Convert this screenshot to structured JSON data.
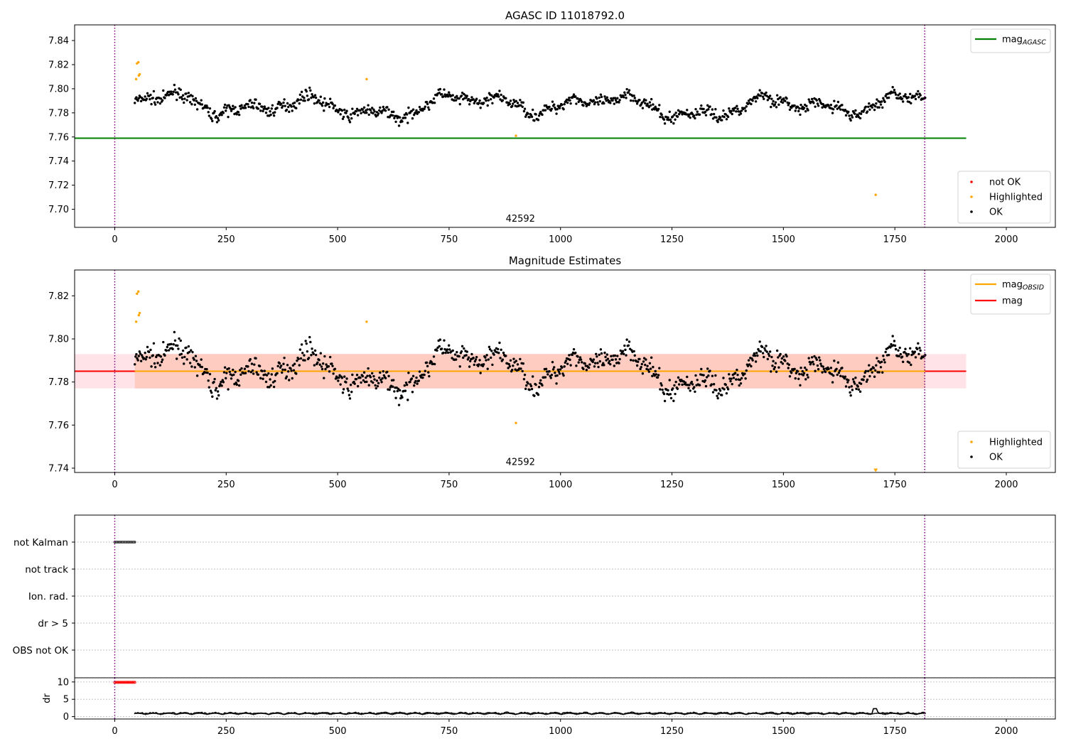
{
  "chart_data": [
    {
      "type": "scatter",
      "title": "AGASC ID 11018792.0",
      "ylim": [
        7.685,
        7.853
      ],
      "xlim": [
        -90,
        2110
      ],
      "x_ticks": [
        0,
        250,
        500,
        750,
        1000,
        1250,
        1500,
        1750,
        2000
      ],
      "y_ticks": [
        7.7,
        7.72,
        7.74,
        7.76,
        7.78,
        7.8,
        7.82,
        7.84
      ],
      "y_tick_decimals": 2,
      "vlines": [
        0,
        1817
      ],
      "hlines": [
        {
          "name": "mag_AGASC",
          "y": 7.759,
          "x": [
            -90,
            1910
          ],
          "color": "#008000"
        }
      ],
      "obsid_label": {
        "text": "42592",
        "x": 910,
        "y": 7.688
      },
      "legend_top": [
        {
          "label": "mag",
          "sub": "AGASC",
          "color": "#008000"
        }
      ],
      "legend_bottom": [
        {
          "label": "not OK",
          "color": "#ff0000"
        },
        {
          "label": "Highlighted",
          "color": "#ffa500"
        },
        {
          "label": "OK",
          "color": "#000000"
        }
      ],
      "series": [
        {
          "name": "OK",
          "color": "#000000",
          "x_range": [
            45,
            1818
          ],
          "n": 1000,
          "base": 7.786,
          "noise": 0.0042
        },
        {
          "name": "Highlighted",
          "color": "#ffa500",
          "points": [
            [
              50,
              7.821
            ],
            [
              53,
              7.822
            ],
            [
              48,
              7.808
            ],
            [
              54,
              7.811
            ],
            [
              56,
              7.812
            ],
            [
              565,
              7.808
            ],
            [
              900,
              7.761
            ],
            [
              1707,
              7.712
            ]
          ]
        },
        {
          "name": "not OK",
          "color": "#ff0000",
          "points": []
        }
      ]
    },
    {
      "type": "scatter",
      "title": "Magnitude Estimates",
      "ylim": [
        7.738,
        7.832
      ],
      "xlim": [
        -90,
        2110
      ],
      "x_ticks": [
        0,
        250,
        500,
        750,
        1000,
        1250,
        1500,
        1750,
        2000
      ],
      "y_ticks": [
        7.74,
        7.76,
        7.78,
        7.8,
        7.82
      ],
      "y_tick_decimals": 2,
      "vlines": [
        0,
        1817
      ],
      "hlines": [
        {
          "name": "mag",
          "y": 7.785,
          "x": [
            -90,
            1910
          ],
          "color": "#ff0000"
        },
        {
          "name": "mag_OBSID",
          "y": 7.785,
          "x": [
            45,
            1818
          ],
          "color": "#ffa500"
        }
      ],
      "bands": [
        {
          "y": [
            7.777,
            7.793
          ],
          "x": [
            -90,
            1910
          ],
          "color": "#ffc0cb",
          "opacity": 0.45
        },
        {
          "y": [
            7.777,
            7.793
          ],
          "x": [
            45,
            1818
          ],
          "color": "#ffa07a",
          "opacity": 0.35
        }
      ],
      "obsid_label": {
        "text": "42592",
        "x": 910,
        "y": 7.7405
      },
      "legend_top": [
        {
          "label": "mag",
          "sub": "OBSID",
          "color": "#ffa500"
        },
        {
          "label": "mag",
          "sub": "",
          "color": "#ff0000"
        }
      ],
      "legend_bottom": [
        {
          "label": "Highlighted",
          "color": "#ffa500"
        },
        {
          "label": "OK",
          "color": "#000000"
        }
      ],
      "series": [
        {
          "name": "OK",
          "color": "#000000",
          "x_range": [
            45,
            1818
          ],
          "n": 1000,
          "base": 7.786,
          "noise": 0.0042
        },
        {
          "name": "Highlighted",
          "color": "#ffa500",
          "points": [
            [
              50,
              7.821
            ],
            [
              53,
              7.822
            ],
            [
              48,
              7.808
            ],
            [
              54,
              7.811
            ],
            [
              56,
              7.812
            ],
            [
              565,
              7.808
            ],
            [
              900,
              7.761
            ]
          ]
        },
        {
          "name": "Highlighted-clipped",
          "color": "#ffa500",
          "marker": "triangle-down",
          "points": [
            [
              1707,
              7.739
            ]
          ]
        }
      ]
    },
    {
      "type": "scatter",
      "title": "",
      "xlim": [
        -90,
        2110
      ],
      "categories": [
        "not Kalman",
        "not track",
        "Ion. rad.",
        "dr > 5",
        "OBS not OK"
      ],
      "vlines": [
        0,
        1817
      ],
      "series": [
        {
          "name": "not Kalman",
          "color": "#000000",
          "x_range": [
            0,
            45
          ],
          "n": 14
        }
      ]
    },
    {
      "type": "line",
      "title": "",
      "ylabel": "dr",
      "xlim": [
        -90,
        2110
      ],
      "ylim": [
        -0.7,
        11.2
      ],
      "x_ticks": [
        0,
        250,
        500,
        750,
        1000,
        1250,
        1500,
        1750,
        2000
      ],
      "y_ticks": [
        0,
        5,
        10
      ],
      "y_tick_decimals": 0,
      "vlines": [
        0,
        1817
      ],
      "series": [
        {
          "name": "dr",
          "color": "#000000",
          "x_range": [
            45,
            1818
          ],
          "n": 520,
          "base": 0.6,
          "noise": 0.35
        },
        {
          "name": "dr-clipped",
          "color": "#ff0000",
          "x_range": [
            0,
            45
          ],
          "n": 14,
          "value": 9.9
        }
      ]
    }
  ]
}
